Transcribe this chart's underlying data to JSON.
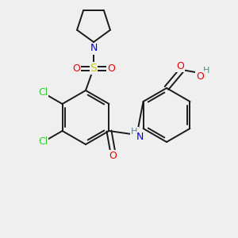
{
  "bg_color": "#efefef",
  "bond_color": "#1a1a1a",
  "atom_colors": {
    "N": "#0000ee",
    "O": "#ee0000",
    "S": "#cccc00",
    "Cl": "#33cc33",
    "H": "#558888",
    "C": "#1a1a1a"
  },
  "figsize": [
    3.0,
    3.0
  ],
  "dpi": 100
}
